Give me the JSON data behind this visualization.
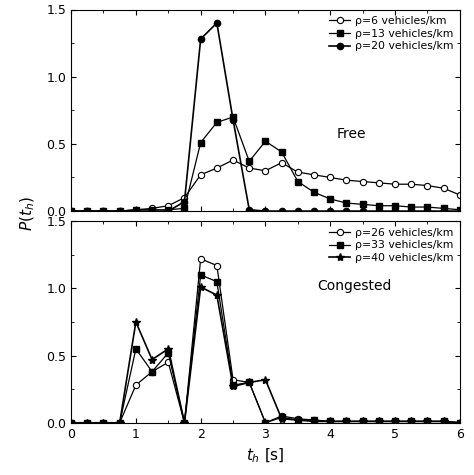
{
  "free_x": [
    0,
    0.25,
    0.5,
    0.75,
    1.0,
    1.25,
    1.5,
    1.75,
    2.0,
    2.25,
    2.5,
    2.75,
    3.0,
    3.25,
    3.5,
    3.75,
    4.0,
    4.25,
    4.5,
    4.75,
    5.0,
    5.25,
    5.5,
    5.75,
    6.0
  ],
  "free_rho6": [
    0,
    0,
    0,
    0,
    0.01,
    0.02,
    0.04,
    0.1,
    0.27,
    0.32,
    0.38,
    0.32,
    0.3,
    0.36,
    0.29,
    0.27,
    0.25,
    0.23,
    0.22,
    0.21,
    0.2,
    0.2,
    0.19,
    0.17,
    0.12
  ],
  "free_rho13": [
    0,
    0,
    0,
    0,
    0.01,
    0.01,
    0.01,
    0.02,
    0.51,
    0.66,
    0.7,
    0.37,
    0.52,
    0.44,
    0.22,
    0.14,
    0.09,
    0.06,
    0.05,
    0.04,
    0.04,
    0.03,
    0.03,
    0.02,
    0.01
  ],
  "free_rho20": [
    0,
    0,
    0,
    0,
    0.0,
    0.0,
    0.0,
    0.07,
    1.28,
    1.4,
    0.68,
    0.01,
    0.0,
    0.0,
    0.0,
    0.0,
    0.0,
    0.0,
    0.0,
    0.0,
    0.0,
    0.0,
    0.0,
    0.0,
    0.0
  ],
  "cong_x": [
    0,
    0.25,
    0.5,
    0.75,
    1.0,
    1.25,
    1.5,
    1.75,
    2.0,
    2.25,
    2.5,
    2.75,
    3.0,
    3.25,
    3.5,
    3.75,
    4.0,
    4.25,
    4.5,
    4.75,
    5.0,
    5.25,
    5.5,
    5.75,
    6.0
  ],
  "cong_rho26": [
    0,
    0,
    0,
    0,
    0.28,
    0.38,
    0.45,
    0.0,
    1.22,
    1.17,
    0.32,
    0.3,
    0.0,
    0.05,
    0.03,
    0.02,
    0.01,
    0.01,
    0.01,
    0.01,
    0.01,
    0.01,
    0.01,
    0.01,
    0.0
  ],
  "cong_rho33": [
    0,
    0,
    0,
    0,
    0.55,
    0.38,
    0.52,
    0.0,
    1.1,
    1.05,
    0.28,
    0.3,
    0.0,
    0.04,
    0.02,
    0.02,
    0.01,
    0.01,
    0.01,
    0.01,
    0.01,
    0.01,
    0.01,
    0.01,
    0.0
  ],
  "cong_rho40": [
    0,
    0,
    0,
    0.0,
    0.75,
    0.47,
    0.55,
    0.0,
    1.01,
    0.95,
    0.27,
    0.3,
    0.32,
    0.03,
    0.02,
    0.01,
    0.01,
    0.01,
    0.01,
    0.01,
    0.01,
    0.01,
    0.01,
    0.01,
    0.0
  ],
  "xlabel": "$t_h$ [s]",
  "ylabel": "$P(t_h)$",
  "free_label": "Free",
  "cong_label": "Congested",
  "legend_free": [
    "ρ=6 vehicles/km",
    "ρ=13 vehicles/km",
    "ρ=20 vehicles/km"
  ],
  "legend_cong": [
    "ρ=26 vehicles/km",
    "ρ=33 vehicles/km",
    "ρ=40 vehicles/km"
  ],
  "ylim": [
    0,
    1.5
  ],
  "xlim": [
    0,
    6
  ],
  "yticks": [
    0,
    0.5,
    1.0,
    1.5
  ],
  "xticks": [
    0,
    1,
    2,
    3,
    4,
    5,
    6
  ]
}
